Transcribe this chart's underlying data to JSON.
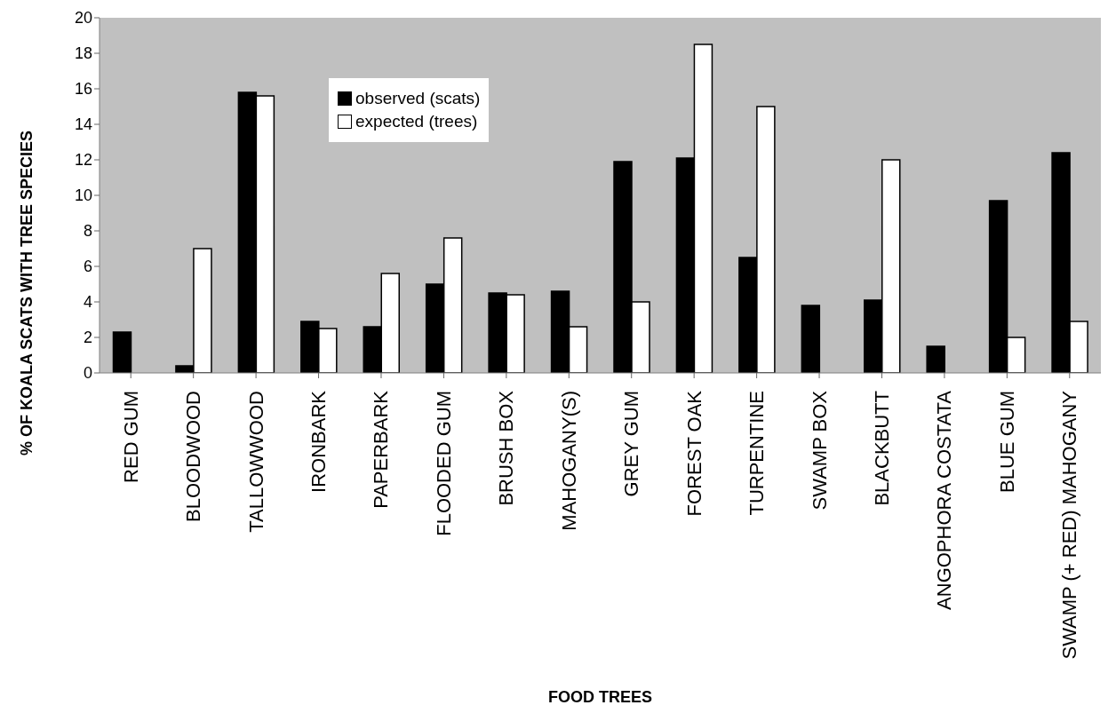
{
  "chart_data": {
    "type": "bar",
    "xlabel": "FOOD TREES",
    "ylabel": "% OF KOALA SCATS WITH TREE SPECIES",
    "categories": [
      "RED GUM",
      "BLOODWOOD",
      "TALLOWWOOD",
      "IRONBARK",
      "PAPERBARK",
      "FLOODED GUM",
      "BRUSH BOX",
      "MAHOGANY(S)",
      "GREY GUM",
      "FOREST OAK",
      "TURPENTINE",
      "SWAMP BOX",
      "BLACKBUTT",
      "ANGOPHORA COSTATA",
      "BLUE GUM",
      "SWAMP (+ RED) MAHOGANY"
    ],
    "series": [
      {
        "name": "observed (scats)",
        "color": "#000000",
        "values": [
          2.3,
          0.4,
          15.8,
          2.9,
          2.6,
          5.0,
          4.5,
          4.6,
          11.9,
          12.1,
          6.5,
          3.8,
          4.1,
          1.5,
          9.7,
          12.4
        ]
      },
      {
        "name": "expected (trees)",
        "color": "#ffffff",
        "values": [
          null,
          7.0,
          15.6,
          2.5,
          5.6,
          7.6,
          4.4,
          2.6,
          4.0,
          18.5,
          15.0,
          null,
          12.0,
          null,
          2.0,
          2.9
        ]
      }
    ],
    "ylim": [
      0,
      20
    ],
    "yticks": [
      0,
      2,
      4,
      6,
      8,
      10,
      12,
      14,
      16,
      18,
      20
    ],
    "legend": "top"
  }
}
